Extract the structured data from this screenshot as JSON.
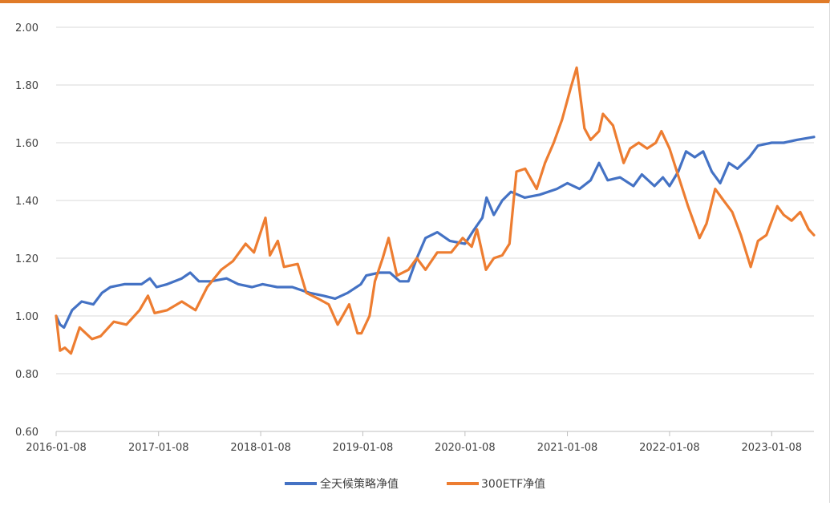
{
  "chart_data": {
    "type": "line",
    "title": "",
    "xlabel": "",
    "ylabel": "",
    "ylim": [
      0.6,
      2.0
    ],
    "y_ticks": [
      "0.60",
      "0.80",
      "1.00",
      "1.20",
      "1.40",
      "1.60",
      "1.80",
      "2.00"
    ],
    "x_range": [
      "2016-01-08",
      "2023-06-08"
    ],
    "x_ticks": [
      "2016-01-08",
      "2017-01-08",
      "2018-01-08",
      "2019-01-08",
      "2020-01-08",
      "2021-01-08",
      "2022-01-08",
      "2023-01-08"
    ],
    "grid": "horizontal",
    "legend_position": "bottom",
    "colors": {
      "series1": "#4472c4",
      "series2": "#ed7d31",
      "grid": "#d9d9d9",
      "axis": "#bfbfbf"
    },
    "series": [
      {
        "name": "全天候策略净值",
        "color": "#4472c4",
        "points": [
          [
            "2016-01-08",
            1.0
          ],
          [
            "2016-01-22",
            0.97
          ],
          [
            "2016-02-05",
            0.96
          ],
          [
            "2016-03-05",
            1.02
          ],
          [
            "2016-04-08",
            1.05
          ],
          [
            "2016-05-20",
            1.04
          ],
          [
            "2016-06-20",
            1.08
          ],
          [
            "2016-07-20",
            1.1
          ],
          [
            "2016-09-08",
            1.11
          ],
          [
            "2016-11-08",
            1.11
          ],
          [
            "2016-12-08",
            1.13
          ],
          [
            "2017-01-01",
            1.1
          ],
          [
            "2017-02-08",
            1.11
          ],
          [
            "2017-04-01",
            1.13
          ],
          [
            "2017-05-01",
            1.15
          ],
          [
            "2017-06-01",
            1.12
          ],
          [
            "2017-07-15",
            1.12
          ],
          [
            "2017-09-08",
            1.13
          ],
          [
            "2017-10-20",
            1.11
          ],
          [
            "2017-12-08",
            1.1
          ],
          [
            "2018-01-15",
            1.11
          ],
          [
            "2018-03-08",
            1.1
          ],
          [
            "2018-05-01",
            1.1
          ],
          [
            "2018-07-01",
            1.08
          ],
          [
            "2018-08-20",
            1.07
          ],
          [
            "2018-10-01",
            1.06
          ],
          [
            "2018-11-15",
            1.08
          ],
          [
            "2019-01-01",
            1.11
          ],
          [
            "2019-01-20",
            1.14
          ],
          [
            "2019-03-08",
            1.15
          ],
          [
            "2019-04-15",
            1.15
          ],
          [
            "2019-05-20",
            1.12
          ],
          [
            "2019-06-20",
            1.12
          ],
          [
            "2019-07-20",
            1.2
          ],
          [
            "2019-08-20",
            1.27
          ],
          [
            "2019-10-01",
            1.29
          ],
          [
            "2019-11-15",
            1.26
          ],
          [
            "2020-01-08",
            1.25
          ],
          [
            "2020-02-10",
            1.3
          ],
          [
            "2020-03-10",
            1.34
          ],
          [
            "2020-03-25",
            1.41
          ],
          [
            "2020-04-20",
            1.35
          ],
          [
            "2020-05-20",
            1.4
          ],
          [
            "2020-06-20",
            1.43
          ],
          [
            "2020-08-08",
            1.41
          ],
          [
            "2020-10-01",
            1.42
          ],
          [
            "2020-12-01",
            1.44
          ],
          [
            "2021-01-08",
            1.46
          ],
          [
            "2021-02-20",
            1.44
          ],
          [
            "2021-04-01",
            1.47
          ],
          [
            "2021-05-01",
            1.53
          ],
          [
            "2021-06-01",
            1.47
          ],
          [
            "2021-07-15",
            1.48
          ],
          [
            "2021-09-01",
            1.45
          ],
          [
            "2021-10-01",
            1.49
          ],
          [
            "2021-11-15",
            1.45
          ],
          [
            "2021-12-15",
            1.48
          ],
          [
            "2022-01-08",
            1.45
          ],
          [
            "2022-02-08",
            1.5
          ],
          [
            "2022-03-08",
            1.57
          ],
          [
            "2022-04-08",
            1.55
          ],
          [
            "2022-05-08",
            1.57
          ],
          [
            "2022-06-08",
            1.5
          ],
          [
            "2022-07-08",
            1.46
          ],
          [
            "2022-08-08",
            1.53
          ],
          [
            "2022-09-08",
            1.51
          ],
          [
            "2022-10-20",
            1.55
          ],
          [
            "2022-11-20",
            1.59
          ],
          [
            "2023-01-08",
            1.6
          ],
          [
            "2023-02-20",
            1.6
          ],
          [
            "2023-04-08",
            1.61
          ],
          [
            "2023-06-08",
            1.62
          ]
        ]
      },
      {
        "name": "300ETF净值",
        "color": "#ed7d31",
        "points": [
          [
            "2016-01-08",
            1.0
          ],
          [
            "2016-01-22",
            0.88
          ],
          [
            "2016-02-08",
            0.89
          ],
          [
            "2016-03-01",
            0.87
          ],
          [
            "2016-04-01",
            0.96
          ],
          [
            "2016-05-15",
            0.92
          ],
          [
            "2016-06-15",
            0.93
          ],
          [
            "2016-08-01",
            0.98
          ],
          [
            "2016-09-15",
            0.97
          ],
          [
            "2016-11-01",
            1.02
          ],
          [
            "2016-12-01",
            1.07
          ],
          [
            "2016-12-25",
            1.01
          ],
          [
            "2017-02-08",
            1.02
          ],
          [
            "2017-04-01",
            1.05
          ],
          [
            "2017-05-20",
            1.02
          ],
          [
            "2017-07-01",
            1.1
          ],
          [
            "2017-08-20",
            1.16
          ],
          [
            "2017-10-01",
            1.19
          ],
          [
            "2017-11-15",
            1.25
          ],
          [
            "2017-12-15",
            1.22
          ],
          [
            "2018-01-25",
            1.34
          ],
          [
            "2018-02-10",
            1.21
          ],
          [
            "2018-03-10",
            1.26
          ],
          [
            "2018-04-01",
            1.17
          ],
          [
            "2018-05-20",
            1.18
          ],
          [
            "2018-06-20",
            1.08
          ],
          [
            "2018-08-01",
            1.06
          ],
          [
            "2018-09-08",
            1.04
          ],
          [
            "2018-10-10",
            0.97
          ],
          [
            "2018-11-20",
            1.04
          ],
          [
            "2018-12-20",
            0.94
          ],
          [
            "2019-01-03",
            0.94
          ],
          [
            "2019-02-01",
            1.0
          ],
          [
            "2019-02-20",
            1.12
          ],
          [
            "2019-03-20",
            1.2
          ],
          [
            "2019-04-10",
            1.27
          ],
          [
            "2019-05-10",
            1.14
          ],
          [
            "2019-06-20",
            1.16
          ],
          [
            "2019-07-20",
            1.2
          ],
          [
            "2019-08-20",
            1.16
          ],
          [
            "2019-10-01",
            1.22
          ],
          [
            "2019-11-20",
            1.22
          ],
          [
            "2019-12-31",
            1.27
          ],
          [
            "2020-02-01",
            1.24
          ],
          [
            "2020-02-20",
            1.3
          ],
          [
            "2020-03-23",
            1.16
          ],
          [
            "2020-04-20",
            1.2
          ],
          [
            "2020-05-20",
            1.21
          ],
          [
            "2020-06-15",
            1.25
          ],
          [
            "2020-07-10",
            1.5
          ],
          [
            "2020-08-10",
            1.51
          ],
          [
            "2020-09-20",
            1.44
          ],
          [
            "2020-10-20",
            1.53
          ],
          [
            "2020-11-20",
            1.6
          ],
          [
            "2020-12-20",
            1.68
          ],
          [
            "2021-01-20",
            1.79
          ],
          [
            "2021-02-10",
            1.86
          ],
          [
            "2021-03-10",
            1.65
          ],
          [
            "2021-04-01",
            1.61
          ],
          [
            "2021-05-01",
            1.64
          ],
          [
            "2021-05-15",
            1.7
          ],
          [
            "2021-06-20",
            1.66
          ],
          [
            "2021-07-28",
            1.53
          ],
          [
            "2021-08-20",
            1.58
          ],
          [
            "2021-09-20",
            1.6
          ],
          [
            "2021-10-20",
            1.58
          ],
          [
            "2021-11-20",
            1.6
          ],
          [
            "2021-12-10",
            1.64
          ],
          [
            "2022-01-08",
            1.58
          ],
          [
            "2022-02-10",
            1.48
          ],
          [
            "2022-03-15",
            1.38
          ],
          [
            "2022-04-25",
            1.27
          ],
          [
            "2022-05-20",
            1.32
          ],
          [
            "2022-06-20",
            1.44
          ],
          [
            "2022-07-20",
            1.4
          ],
          [
            "2022-08-20",
            1.36
          ],
          [
            "2022-09-20",
            1.28
          ],
          [
            "2022-10-25",
            1.17
          ],
          [
            "2022-11-20",
            1.26
          ],
          [
            "2022-12-20",
            1.28
          ],
          [
            "2023-01-28",
            1.38
          ],
          [
            "2023-02-20",
            1.35
          ],
          [
            "2023-03-20",
            1.33
          ],
          [
            "2023-04-20",
            1.36
          ],
          [
            "2023-05-20",
            1.3
          ],
          [
            "2023-06-08",
            1.28
          ]
        ]
      }
    ]
  }
}
